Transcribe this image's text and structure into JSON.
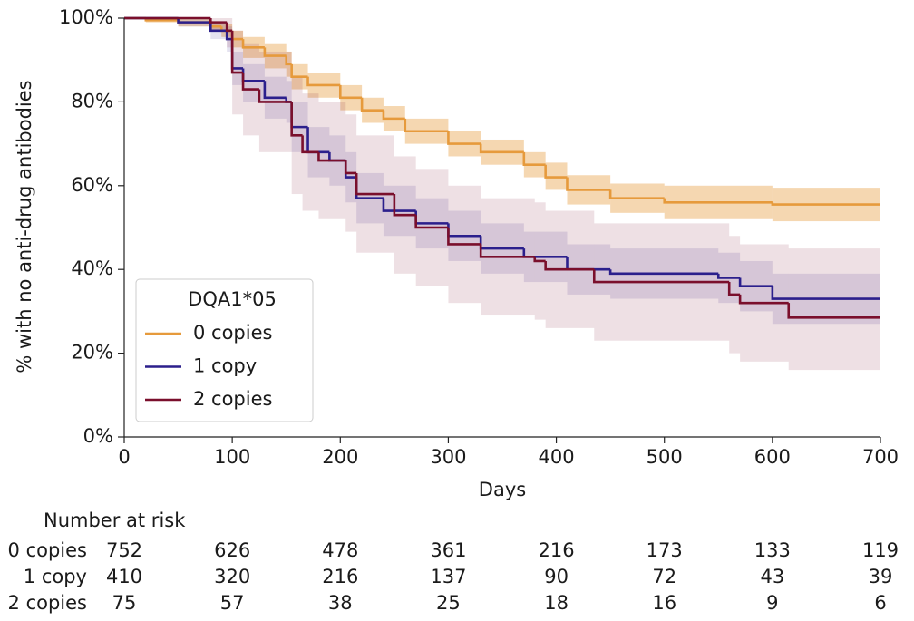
{
  "chart_data": {
    "type": "step",
    "y_label": "% with no anti-drug antibodies",
    "x_label": "Days",
    "xlim": [
      0,
      700
    ],
    "ylim": [
      0,
      100
    ],
    "xticks": [
      0,
      100,
      200,
      300,
      400,
      500,
      600,
      700
    ],
    "yticks": [
      {
        "value": 0,
        "label": "0%"
      },
      {
        "value": 20,
        "label": "20%"
      },
      {
        "value": 40,
        "label": "40%"
      },
      {
        "value": 60,
        "label": "60%"
      },
      {
        "value": 80,
        "label": "80%"
      },
      {
        "value": 100,
        "label": "100%"
      }
    ],
    "legend_title": "DQA1*05",
    "legend_position": "lower left",
    "series": [
      {
        "name": "0 copies",
        "color": "#e69a3c",
        "x": [
          0,
          20,
          50,
          80,
          90,
          100,
          110,
          130,
          150,
          155,
          170,
          200,
          220,
          240,
          260,
          300,
          330,
          370,
          390,
          410,
          450,
          500,
          600,
          700
        ],
        "values": [
          100,
          99.5,
          99,
          98,
          97,
          95,
          93,
          91,
          89,
          86,
          84,
          81,
          78,
          76,
          73,
          70,
          68,
          65,
          62,
          59,
          57,
          56,
          55.5,
          55.5
        ],
        "ci_upper": [
          100,
          100,
          100,
          99,
          98.5,
          97,
          95.5,
          94,
          92,
          89,
          87,
          84,
          81,
          79,
          76,
          73,
          71,
          68,
          65.5,
          62.5,
          60.5,
          60,
          59.5,
          59.5
        ],
        "ci_lower": [
          100,
          99,
          98,
          97,
          95.5,
          93,
          90.5,
          88,
          86,
          83,
          81,
          78,
          75,
          73,
          70,
          67,
          65,
          62,
          59,
          55.5,
          53.5,
          52,
          51.5,
          51.5
        ]
      },
      {
        "name": "1 copy",
        "color": "#2b1f8c",
        "x": [
          0,
          50,
          80,
          95,
          100,
          110,
          130,
          150,
          155,
          170,
          190,
          205,
          215,
          240,
          270,
          300,
          330,
          370,
          410,
          450,
          550,
          570,
          600,
          700
        ],
        "values": [
          100,
          99,
          97,
          95,
          88,
          85,
          81,
          80,
          74,
          68,
          66,
          62,
          57,
          54,
          51,
          48,
          45,
          43,
          40,
          39,
          38,
          36,
          33,
          33
        ],
        "ci_upper": [
          100,
          100,
          99,
          98,
          92,
          89,
          86,
          85,
          80,
          74,
          72,
          68,
          63,
          60,
          57,
          54,
          51,
          49,
          46,
          45,
          44,
          42,
          39,
          39
        ],
        "ci_lower": [
          100,
          98,
          95,
          92,
          84,
          80,
          76,
          75,
          68,
          62,
          60,
          56,
          51,
          48,
          45,
          42,
          39,
          37,
          34,
          33,
          32,
          30,
          27,
          27
        ]
      },
      {
        "name": "2 copies",
        "color": "#7a0f2c",
        "x": [
          0,
          80,
          95,
          100,
          110,
          125,
          155,
          165,
          180,
          205,
          215,
          250,
          270,
          300,
          330,
          380,
          390,
          435,
          555,
          560,
          570,
          615,
          700
        ],
        "values": [
          100,
          99,
          97,
          87,
          83,
          80,
          72,
          68,
          66,
          63,
          58,
          53,
          50,
          46,
          43,
          42,
          40,
          37,
          37,
          34,
          32,
          28.5,
          28.5
        ],
        "ci_upper": [
          100,
          100,
          100,
          97,
          94,
          92,
          86,
          82,
          80,
          77,
          72,
          67,
          64,
          60,
          57,
          56,
          54,
          51,
          51,
          48,
          46,
          45,
          45
        ],
        "ci_lower": [
          100,
          97,
          93,
          77,
          72,
          68,
          58,
          54,
          52,
          49,
          44,
          39,
          36,
          32,
          29,
          28,
          26,
          23,
          23,
          20,
          18,
          16,
          16
        ]
      }
    ],
    "risk_table": {
      "title": "Number at risk",
      "rows": [
        {
          "name": "0 copies",
          "values": [
            752,
            626,
            478,
            361,
            216,
            173,
            133,
            119
          ]
        },
        {
          "name": "1 copy",
          "values": [
            410,
            320,
            216,
            137,
            90,
            72,
            43,
            39
          ]
        },
        {
          "name": "2 copies",
          "values": [
            75,
            57,
            38,
            25,
            18,
            16,
            9,
            6
          ]
        }
      ]
    }
  }
}
